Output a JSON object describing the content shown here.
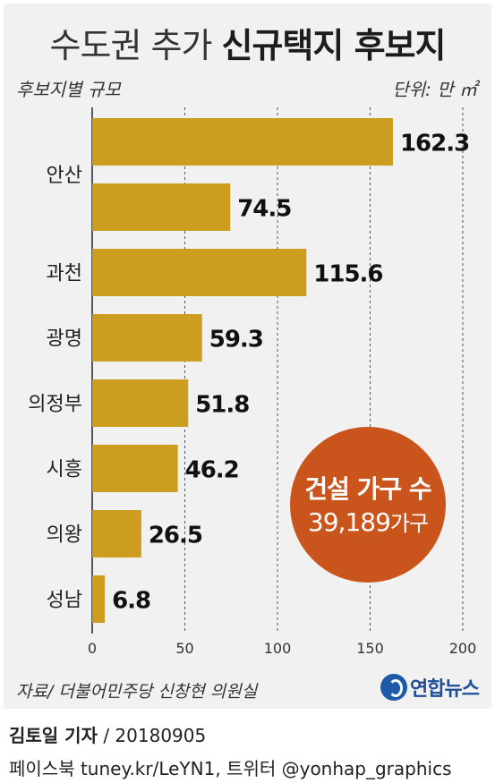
{
  "title": {
    "regular": "수도권 추가",
    "bold": "신규택지 후보지"
  },
  "subtitle": "후보지별 규모",
  "unit_label": "단위: 만 ㎡",
  "chart_data": {
    "type": "bar",
    "orientation": "horizontal",
    "bar_color": "#cc9d1e",
    "categories": [
      "안산",
      "",
      "과천",
      "광명",
      "의정부",
      "시흥",
      "의왕",
      "성남"
    ],
    "values": [
      162.3,
      74.5,
      115.6,
      59.3,
      51.8,
      46.2,
      26.5,
      6.8
    ],
    "value_labels": [
      "162.3",
      "74.5",
      "115.6",
      "59.3",
      "51.8",
      "46.2",
      "26.5",
      "6.8"
    ],
    "xlim": [
      0,
      200
    ],
    "xticks": [
      0,
      50,
      100,
      150,
      200
    ],
    "grid": "vertical-dashed"
  },
  "badge": {
    "line1": "건설 가구 수",
    "number": "39,189",
    "unit": "가구",
    "color": "#c9551c"
  },
  "source": "자료/ 더불어민주당 신창현 의원실",
  "logo": {
    "text": "연합뉴스",
    "icon": "yonhap-logo-icon",
    "color": "#1e5aa8"
  },
  "footer": {
    "reporter": "김토일 기자",
    "date": "/ 20180905",
    "social": "페이스북 tuney.kr/LeYN1, 트위터 @yonhap_graphics"
  }
}
